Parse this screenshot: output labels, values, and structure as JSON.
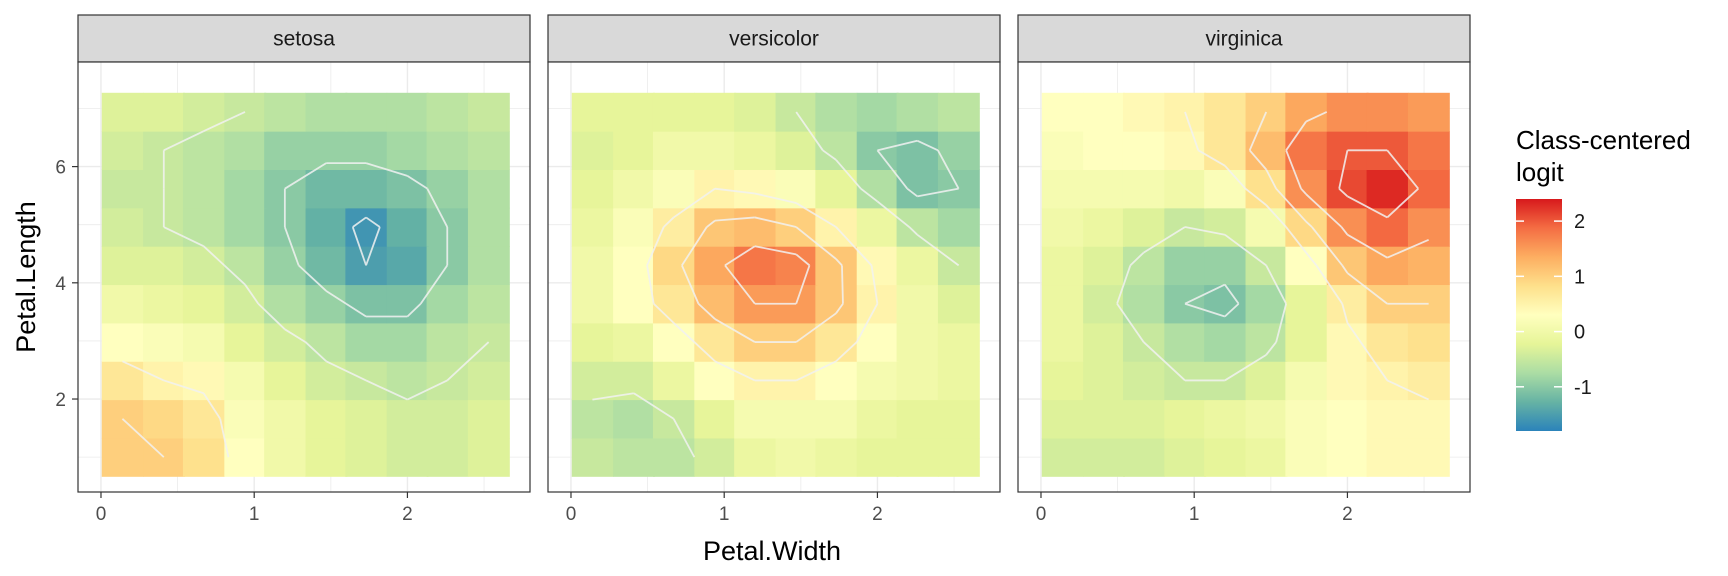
{
  "chart_data": {
    "type": "heatmap",
    "panels": [
      "setosa",
      "versicolor",
      "virginica"
    ],
    "xlabel": "Petal.Width",
    "ylabel": "Petal.Length",
    "x_ticks": [
      0,
      1,
      2
    ],
    "y_ticks": [
      2,
      4,
      6
    ],
    "xlim": [
      -0.15,
      2.8
    ],
    "ylim": [
      0.4,
      7.8
    ],
    "x_centers": [
      0.14,
      0.41,
      0.67,
      0.94,
      1.2,
      1.47,
      1.73,
      2.0,
      2.26,
      2.53
    ],
    "y_centers": [
      1.0,
      1.66,
      2.32,
      2.98,
      3.64,
      4.3,
      4.96,
      5.62,
      6.28,
      6.94
    ],
    "legend": {
      "title_lines": [
        "Class-centered",
        "logit"
      ],
      "ticks": [
        2,
        1,
        0,
        -1
      ],
      "range": [
        -1.8,
        2.4
      ]
    },
    "series": [
      {
        "name": "setosa",
        "z": [
          [
            1.0,
            1.0,
            0.8,
            0.3,
            0.0,
            -0.2,
            -0.3,
            -0.4,
            -0.4,
            -0.3
          ],
          [
            1.0,
            0.9,
            0.7,
            0.2,
            0.0,
            -0.2,
            -0.3,
            -0.4,
            -0.4,
            -0.3
          ],
          [
            0.7,
            0.5,
            0.4,
            0.1,
            -0.2,
            -0.4,
            -0.5,
            -0.6,
            -0.5,
            -0.4
          ],
          [
            0.3,
            0.2,
            0.1,
            -0.2,
            -0.4,
            -0.6,
            -0.8,
            -0.8,
            -0.6,
            -0.5
          ],
          [
            0.0,
            -0.1,
            -0.2,
            -0.4,
            -0.7,
            -0.9,
            -1.1,
            -1.1,
            -0.8,
            -0.6
          ],
          [
            -0.3,
            -0.3,
            -0.4,
            -0.6,
            -0.9,
            -1.2,
            -1.5,
            -1.4,
            -1.0,
            -0.7
          ],
          [
            -0.4,
            -0.5,
            -0.6,
            -0.8,
            -1.0,
            -1.3,
            -1.6,
            -1.3,
            -1.0,
            -0.7
          ],
          [
            -0.5,
            -0.5,
            -0.6,
            -0.8,
            -1.0,
            -1.2,
            -1.2,
            -1.1,
            -0.9,
            -0.7
          ],
          [
            -0.4,
            -0.5,
            -0.6,
            -0.7,
            -0.9,
            -0.9,
            -0.9,
            -0.8,
            -0.7,
            -0.6
          ],
          [
            -0.3,
            -0.3,
            -0.4,
            -0.5,
            -0.6,
            -0.7,
            -0.7,
            -0.7,
            -0.6,
            -0.5
          ]
        ]
      },
      {
        "name": "versicolor",
        "z": [
          [
            -0.5,
            -0.6,
            -0.6,
            -0.4,
            -0.1,
            0.0,
            -0.1,
            -0.2,
            -0.2,
            -0.2
          ],
          [
            -0.6,
            -0.7,
            -0.5,
            -0.2,
            0.1,
            0.1,
            0.1,
            -0.1,
            -0.2,
            -0.2
          ],
          [
            -0.4,
            -0.4,
            -0.1,
            0.3,
            0.5,
            0.5,
            0.3,
            0.1,
            0.0,
            -0.1
          ],
          [
            -0.2,
            -0.1,
            0.3,
            0.7,
            1.0,
            1.0,
            0.7,
            0.3,
            0.0,
            -0.1
          ],
          [
            0.0,
            0.3,
            0.7,
            1.2,
            1.5,
            1.5,
            1.1,
            0.5,
            0.0,
            -0.3
          ],
          [
            0.0,
            0.3,
            0.9,
            1.4,
            1.8,
            1.7,
            1.1,
            0.4,
            -0.1,
            -0.5
          ],
          [
            -0.1,
            0.2,
            0.6,
            1.1,
            1.2,
            1.0,
            0.5,
            -0.1,
            -0.6,
            -0.8
          ],
          [
            -0.2,
            0.0,
            0.2,
            0.5,
            0.4,
            0.2,
            -0.2,
            -0.7,
            -1.1,
            -1.0
          ],
          [
            -0.3,
            -0.2,
            0.0,
            0.0,
            -0.1,
            -0.3,
            -0.6,
            -1.0,
            -1.1,
            -0.9
          ],
          [
            -0.2,
            -0.2,
            -0.2,
            -0.2,
            -0.3,
            -0.5,
            -0.7,
            -0.8,
            -0.7,
            -0.6
          ]
        ]
      },
      {
        "name": "virginica",
        "z": [
          [
            -0.4,
            -0.4,
            -0.4,
            -0.3,
            -0.2,
            -0.1,
            0.2,
            0.3,
            0.4,
            0.4
          ],
          [
            -0.3,
            -0.3,
            -0.3,
            -0.2,
            -0.1,
            0.0,
            0.2,
            0.3,
            0.4,
            0.4
          ],
          [
            -0.2,
            -0.3,
            -0.4,
            -0.5,
            -0.5,
            -0.3,
            0.1,
            0.4,
            0.5,
            0.6
          ],
          [
            -0.1,
            -0.3,
            -0.5,
            -0.7,
            -0.8,
            -0.6,
            -0.2,
            0.4,
            0.7,
            0.8
          ],
          [
            -0.1,
            -0.4,
            -0.7,
            -1.0,
            -1.1,
            -0.8,
            -0.2,
            0.6,
            1.0,
            1.0
          ],
          [
            -0.1,
            -0.3,
            -0.6,
            -0.9,
            -0.9,
            -0.5,
            0.3,
            1.1,
            1.4,
            1.3
          ],
          [
            0.0,
            -0.1,
            -0.3,
            -0.5,
            -0.4,
            0.1,
            0.9,
            1.6,
            1.9,
            1.6
          ],
          [
            0.1,
            0.1,
            0.1,
            0.0,
            0.2,
            0.8,
            1.6,
            2.1,
            2.3,
            1.9
          ],
          [
            0.2,
            0.3,
            0.3,
            0.4,
            0.7,
            1.2,
            1.8,
            2.0,
            2.0,
            1.8
          ],
          [
            0.3,
            0.3,
            0.4,
            0.5,
            0.7,
            1.0,
            1.4,
            1.6,
            1.6,
            1.5
          ]
        ]
      }
    ],
    "contour_levels": [
      -1.5,
      -1.0,
      -0.5,
      0.5,
      1.0,
      1.5,
      2.0
    ],
    "contour_color": "#f2f2f2",
    "colors": {
      "scale": [
        "#2b83ba",
        "#66b3a4",
        "#abdda4",
        "#e6f598",
        "#ffffbf",
        "#fee08b",
        "#fdae61",
        "#f46d43",
        "#d7191c"
      ],
      "strip_fill": "#d9d9d9",
      "grid": "#ebebeb",
      "panel_border": "#333333"
    }
  }
}
